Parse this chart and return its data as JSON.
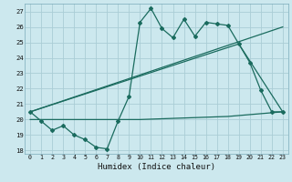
{
  "xlabel": "Humidex (Indice chaleur)",
  "xlim": [
    -0.5,
    23.5
  ],
  "ylim": [
    17.8,
    27.5
  ],
  "xticks": [
    0,
    1,
    2,
    3,
    4,
    5,
    6,
    7,
    8,
    9,
    10,
    11,
    12,
    13,
    14,
    15,
    16,
    17,
    18,
    19,
    20,
    21,
    22,
    23
  ],
  "yticks": [
    18,
    19,
    20,
    21,
    22,
    23,
    24,
    25,
    26,
    27
  ],
  "bg_color": "#cce8ee",
  "grid_color": "#aacdd5",
  "line_color": "#1a6b5e",
  "line1_x": [
    0,
    1,
    2,
    3,
    4,
    5,
    6,
    7,
    8,
    9,
    10,
    11,
    12,
    13,
    14,
    15,
    16,
    17,
    18,
    19,
    20,
    21,
    22,
    23
  ],
  "line1_y": [
    20.5,
    19.9,
    19.3,
    19.6,
    19.0,
    18.7,
    18.2,
    18.1,
    19.9,
    21.5,
    26.3,
    27.2,
    25.9,
    25.3,
    26.5,
    25.4,
    26.3,
    26.2,
    26.1,
    24.9,
    23.7,
    21.9,
    20.5,
    20.5
  ],
  "line2_x": [
    0,
    23
  ],
  "line2_y": [
    20.5,
    26.0
  ],
  "line3_x": [
    0,
    10,
    18,
    23
  ],
  "line3_y": [
    20.0,
    20.0,
    20.2,
    20.5
  ],
  "line4_x": [
    0,
    19,
    23
  ],
  "line4_y": [
    20.5,
    24.9,
    20.5
  ]
}
